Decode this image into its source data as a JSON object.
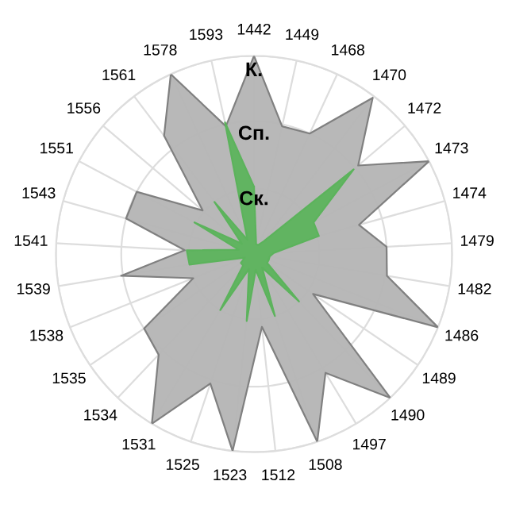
{
  "chart_data": {
    "type": "radar",
    "categories": [
      "1442",
      "1449",
      "1468",
      "1470",
      "1472",
      "1473",
      "1474",
      "1479",
      "1482",
      "1486",
      "1489",
      "1490",
      "1497",
      "1508",
      "1512",
      "1523",
      "1525",
      "1531",
      "1534",
      "1535",
      "1538",
      "1539",
      "1541",
      "1543",
      "1551",
      "1556",
      "1561",
      "1578",
      "1593"
    ],
    "series": [
      {
        "color": "#b4b4b4",
        "values": [
          1.0,
          0.66,
          0.67,
          0.99,
          0.69,
          1.0,
          0.55,
          0.67,
          0.68,
          1.0,
          0.36,
          1.0,
          0.7,
          1.0,
          0.37,
          1.0,
          0.69,
          1.0,
          0.7,
          0.67,
          0.33,
          0.68,
          0.35,
          0.67,
          0.67,
          0.34,
          0.75,
          1.0,
          0.66
        ]
      },
      {
        "color": "#5cb35c",
        "values": [
          0.34,
          0.05,
          0.05,
          0.08,
          0.66,
          0.34,
          0.34,
          0.1,
          0.08,
          0.08,
          0.08,
          0.33,
          0.08,
          0.33,
          0.08,
          0.34,
          0.08,
          0.33,
          0.08,
          0.08,
          0.05,
          0.33,
          0.34,
          0.08,
          0.34,
          0.08,
          0.33,
          0.08,
          0.68
        ]
      }
    ],
    "ylim": [
      0,
      1
    ],
    "yticks": [
      {
        "value": 0.33,
        "label": "Ск."
      },
      {
        "value": 0.67,
        "label": "Сп."
      },
      {
        "value": 1,
        "label": "К."
      }
    ],
    "grid": true
  }
}
